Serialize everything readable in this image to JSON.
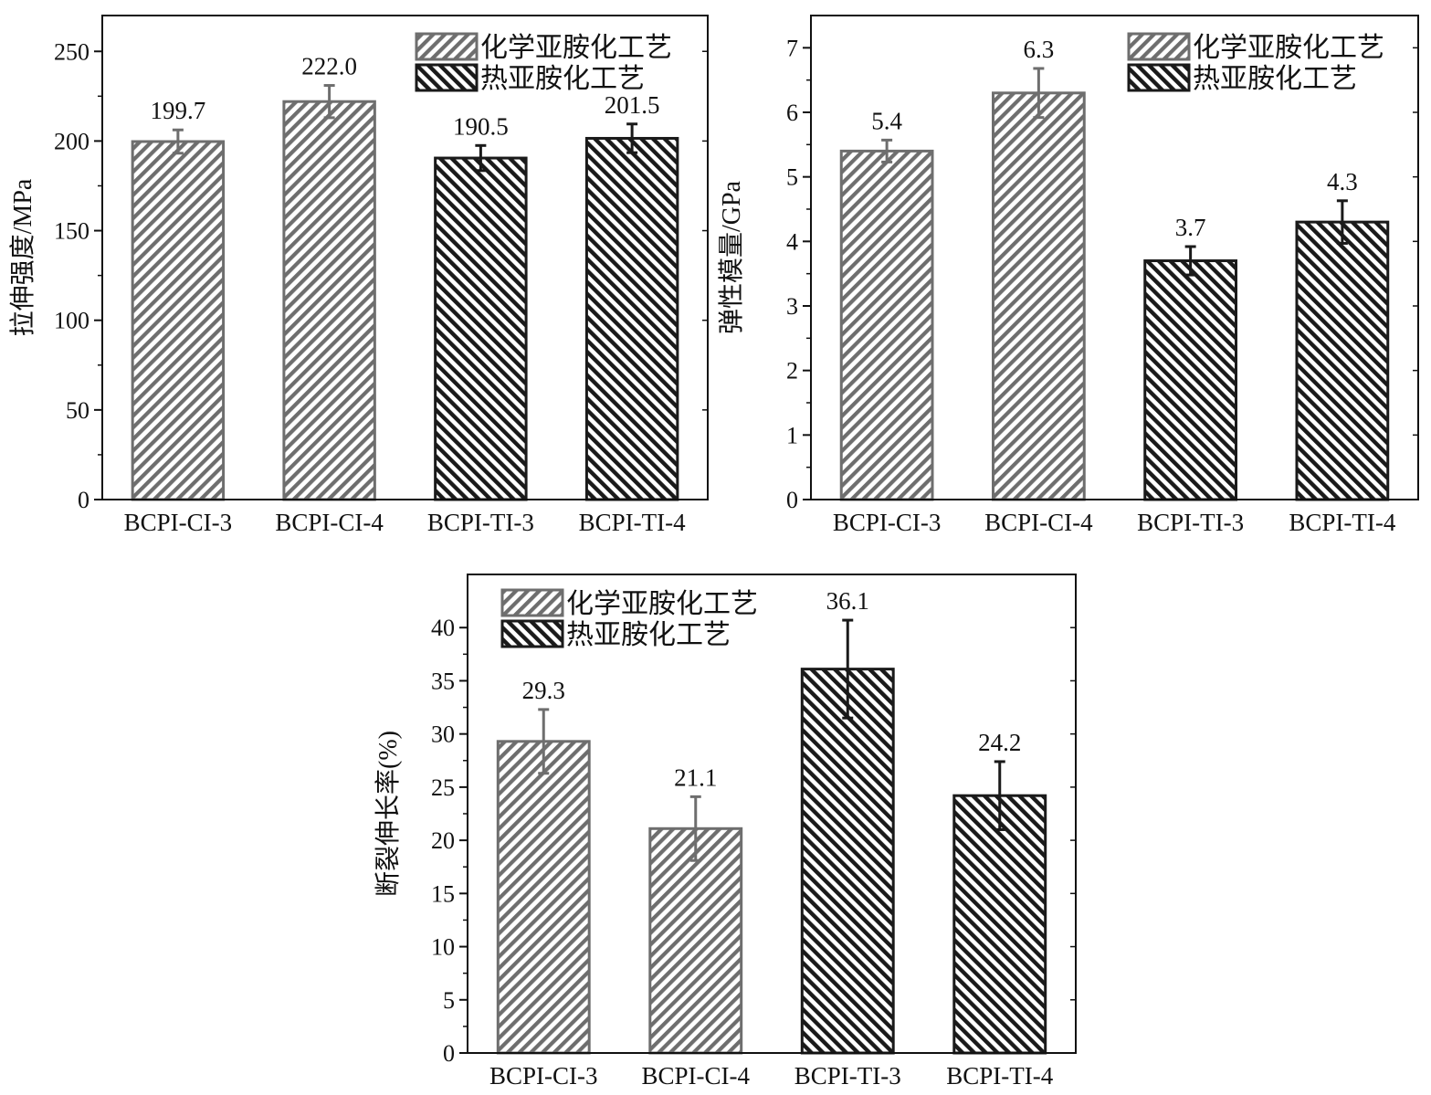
{
  "colors": {
    "chemical": "#6e6e6e",
    "thermal": "#1a1a1a",
    "axis": "#111111",
    "background": "#ffffff"
  },
  "chart_data": [
    {
      "type": "bar",
      "categories": [
        "BCPI-CI-3",
        "BCPI-CI-4",
        "BCPI-TI-3",
        "BCPI-TI-4"
      ],
      "values": [
        199.7,
        222.0,
        190.5,
        201.5
      ],
      "errors": [
        6.5,
        9.0,
        7.0,
        8.0
      ],
      "value_labels": [
        "199.7",
        "222.0",
        "190.5",
        "201.5"
      ],
      "bar_series": [
        "化学亚胺化工艺",
        "化学亚胺化工艺",
        "热亚胺化工艺",
        "热亚胺化工艺"
      ],
      "legend": [
        "化学亚胺化工艺",
        "热亚胺化工艺"
      ],
      "legend_position": "top-right",
      "ylabel": "拉伸强度/MPa",
      "xlabel": "",
      "ylim": [
        0,
        270
      ],
      "yticks": [
        0,
        50,
        100,
        150,
        200,
        250
      ],
      "ytick_labels": [
        "0",
        "50",
        "100",
        "150",
        "200",
        "250"
      ]
    },
    {
      "type": "bar",
      "categories": [
        "BCPI-CI-3",
        "BCPI-CI-4",
        "BCPI-TI-3",
        "BCPI-TI-4"
      ],
      "values": [
        5.4,
        6.3,
        3.7,
        4.3
      ],
      "errors": [
        0.17,
        0.38,
        0.22,
        0.33
      ],
      "value_labels": [
        "5.4",
        "6.3",
        "3.7",
        "4.3"
      ],
      "bar_series": [
        "化学亚胺化工艺",
        "化学亚胺化工艺",
        "热亚胺化工艺",
        "热亚胺化工艺"
      ],
      "legend": [
        "化学亚胺化工艺",
        "热亚胺化工艺"
      ],
      "legend_position": "top-right",
      "ylabel": "弹性模量/GPa",
      "xlabel": "",
      "ylim": [
        0,
        7.5
      ],
      "yticks": [
        0,
        1,
        2,
        3,
        4,
        5,
        6,
        7
      ],
      "ytick_labels": [
        "0",
        "1",
        "2",
        "3",
        "4",
        "5",
        "6",
        "7"
      ]
    },
    {
      "type": "bar",
      "categories": [
        "BCPI-CI-3",
        "BCPI-CI-4",
        "BCPI-TI-3",
        "BCPI-TI-4"
      ],
      "values": [
        29.3,
        21.1,
        36.1,
        24.2
      ],
      "errors": [
        3.0,
        3.0,
        4.6,
        3.2
      ],
      "value_labels": [
        "29.3",
        "21.1",
        "36.1",
        "24.2"
      ],
      "bar_series": [
        "化学亚胺化工艺",
        "化学亚胺化工艺",
        "热亚胺化工艺",
        "热亚胺化工艺"
      ],
      "legend": [
        "化学亚胺化工艺",
        "热亚胺化工艺"
      ],
      "legend_position": "top-left",
      "ylabel": "断裂伸长率(%)",
      "xlabel": "",
      "ylim": [
        0,
        45
      ],
      "yticks": [
        0,
        5,
        10,
        15,
        20,
        25,
        30,
        35,
        40
      ],
      "ytick_labels": [
        "0",
        "5",
        "10",
        "15",
        "20",
        "25",
        "30",
        "35",
        "40"
      ]
    }
  ]
}
